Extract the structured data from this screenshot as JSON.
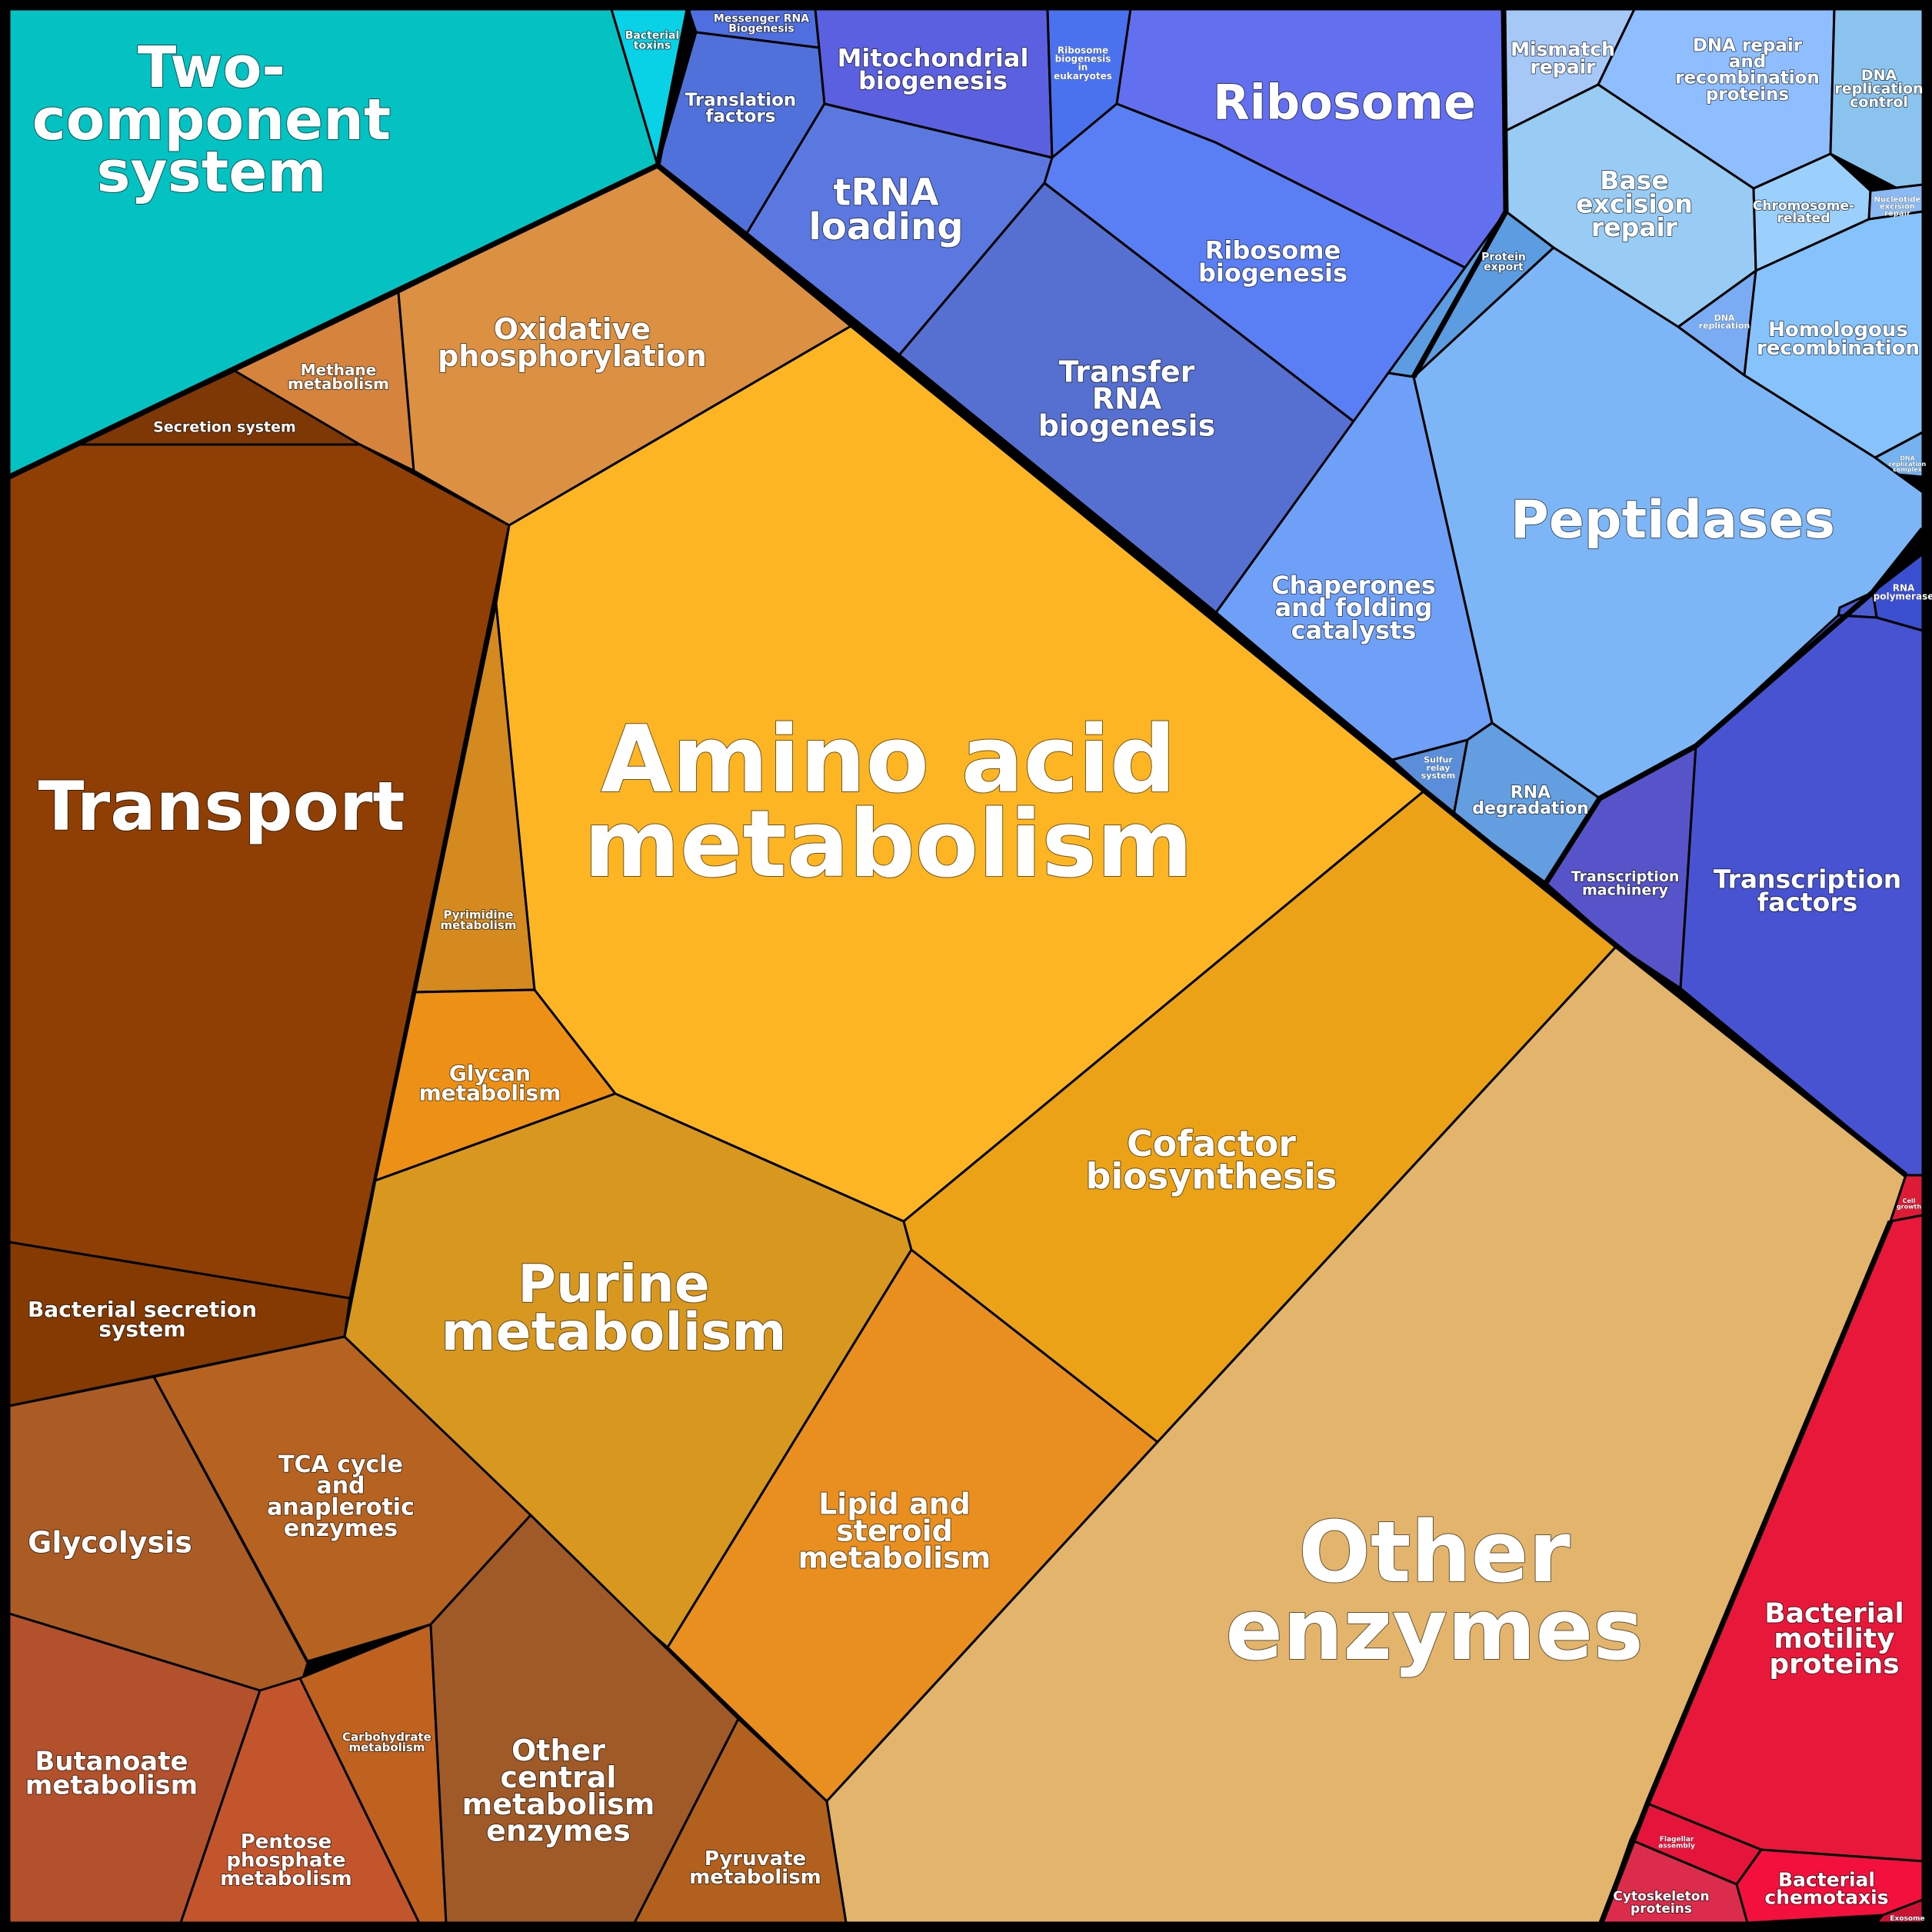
{
  "cells": [
    {
      "id": "two-component-system",
      "lines": [
        "Two-",
        "component",
        "system"
      ],
      "color": "#04c2c2"
    },
    {
      "id": "bacterial-toxins",
      "lines": [
        "Bacterial",
        "toxins"
      ],
      "color": "#0ad2e6"
    },
    {
      "id": "secretion-system",
      "lines": [
        "Secretion system"
      ],
      "color": "#7e3806"
    },
    {
      "id": "methane-metabolism",
      "lines": [
        "Methane",
        "metabolism"
      ],
      "color": "#d5833d"
    },
    {
      "id": "oxidative-phosphorylation",
      "lines": [
        "Oxidative",
        "phosphorylation"
      ],
      "color": "#db9042"
    },
    {
      "id": "transport",
      "lines": [
        "Transport"
      ],
      "color": "#8f3f04"
    },
    {
      "id": "bacterial-secretion-system",
      "lines": [
        "Bacterial secretion",
        "system"
      ],
      "color": "#853a02"
    },
    {
      "id": "amino-acid-metabolism",
      "lines": [
        "Amino acid",
        "metabolism"
      ],
      "color": "#fdb524"
    },
    {
      "id": "pyrimidine-metabolism",
      "lines": [
        "Pyrimidine",
        "metabolism"
      ],
      "color": "#d48a1e"
    },
    {
      "id": "glycan-metabolism",
      "lines": [
        "Glycan",
        "metabolism"
      ],
      "color": "#ed9116"
    },
    {
      "id": "purine-metabolism",
      "lines": [
        "Purine",
        "metabolism"
      ],
      "color": "#d89820"
    },
    {
      "id": "cofactor-biosynthesis",
      "lines": [
        "Cofactor",
        "biosynthesis"
      ],
      "color": "#eba217"
    },
    {
      "id": "lipid-steroid-metabolism",
      "lines": [
        "Lipid and",
        "steroid",
        "metabolism"
      ],
      "color": "#e88f20"
    },
    {
      "id": "other-enzymes",
      "lines": [
        "Other",
        "enzymes"
      ],
      "color": "#e2b46c"
    },
    {
      "id": "glycolysis",
      "lines": [
        "Glycolysis"
      ],
      "color": "#aa5c24"
    },
    {
      "id": "tca-cycle",
      "lines": [
        "TCA cycle",
        "and",
        "anaplerotic",
        "enzymes"
      ],
      "color": "#b66322"
    },
    {
      "id": "butanoate-metabolism",
      "lines": [
        "Butanoate",
        "metabolism"
      ],
      "color": "#b2512c"
    },
    {
      "id": "pentose-phosphate-metabolism",
      "lines": [
        "Pentose",
        "phosphate",
        "metabolism"
      ],
      "color": "#c3552c"
    },
    {
      "id": "carbohydrate-metabolism",
      "lines": [
        "Carbohydrate",
        "metabolism"
      ],
      "color": "#bf6220"
    },
    {
      "id": "other-central-metabolism",
      "lines": [
        "Other",
        "central",
        "metabolism",
        "enzymes"
      ],
      "color": "#a05a28"
    },
    {
      "id": "pyruvate-metabolism",
      "lines": [
        "Pyruvate",
        "metabolism"
      ],
      "color": "#b2601e"
    },
    {
      "id": "messenger-rna-biogenesis",
      "lines": [
        "Messenger RNA",
        "Biogenesis"
      ],
      "color": "#4f6ee0"
    },
    {
      "id": "translation-factors",
      "lines": [
        "Translation",
        "factors"
      ],
      "color": "#5071d9"
    },
    {
      "id": "mitochondrial-biogenesis",
      "lines": [
        "Mitochondrial",
        "biogenesis"
      ],
      "color": "#5a60e0"
    },
    {
      "id": "ribosome-biogenesis-eukaryotes",
      "lines": [
        "Ribosome",
        "biogenesis",
        "in",
        "eukaryotes"
      ],
      "color": "#4b72ee"
    },
    {
      "id": "ribosome",
      "lines": [
        "Ribosome"
      ],
      "color": "#6270ef"
    },
    {
      "id": "trna-loading",
      "lines": [
        "tRNA",
        "loading"
      ],
      "color": "#5a78e0"
    },
    {
      "id": "ribosome-biogenesis",
      "lines": [
        "Ribosome",
        "biogenesis"
      ],
      "color": "#5a7ef4"
    },
    {
      "id": "transfer-rna-biogenesis",
      "lines": [
        "Transfer",
        "RNA",
        "biogenesis"
      ],
      "color": "#5570d0"
    },
    {
      "id": "mismatch-repair",
      "lines": [
        "Mismatch",
        "repair"
      ],
      "color": "#a5c8f6"
    },
    {
      "id": "dna-repair-recombination",
      "lines": [
        "DNA repair",
        "and",
        "recombination",
        "proteins"
      ],
      "color": "#8ebeff"
    },
    {
      "id": "dna-replication-control",
      "lines": [
        "DNA",
        "replication",
        "control"
      ],
      "color": "#8ac4ee"
    },
    {
      "id": "base-excision-repair",
      "lines": [
        "Base",
        "excision",
        "repair"
      ],
      "color": "#98ccf4"
    },
    {
      "id": "chromosome-related",
      "lines": [
        "Chromosome-",
        "related"
      ],
      "color": "#9ad0fb"
    },
    {
      "id": "nucleotide-excision-repair",
      "lines": [
        "Nucleotide",
        "excision",
        "repair"
      ],
      "color": "#8ab9f4"
    },
    {
      "id": "protein-export",
      "lines": [
        "Protein",
        "export"
      ],
      "color": "#5c9ce0"
    },
    {
      "id": "dna-replication",
      "lines": [
        "DNA",
        "replication"
      ],
      "color": "#7aacf4"
    },
    {
      "id": "homologous-recombination",
      "lines": [
        "Homologous",
        "recombination"
      ],
      "color": "#86c2fb"
    },
    {
      "id": "dna-replication-complex",
      "lines": [
        "DNA",
        "replication",
        "complex"
      ],
      "color": "#74b2f0"
    },
    {
      "id": "peptidases",
      "lines": [
        "Peptidases"
      ],
      "color": "#7cb6f6"
    },
    {
      "id": "chaperones",
      "lines": [
        "Chaperones",
        "and folding",
        "catalysts"
      ],
      "color": "#6ea0f8"
    },
    {
      "id": "sulfur-relay-system",
      "lines": [
        "Sulfur",
        "relay",
        "system"
      ],
      "color": "#5b8ed8"
    },
    {
      "id": "rna-degradation",
      "lines": [
        "RNA",
        "degradation"
      ],
      "color": "#629ee0"
    },
    {
      "id": "rna-polymerase",
      "lines": [
        "RNA",
        "polymerase"
      ],
      "color": "#3a4ed0"
    },
    {
      "id": "transcription-small",
      "lines": [],
      "color": "#4a5cd0"
    },
    {
      "id": "transcription-machinery",
      "lines": [
        "Transcription",
        "machinery"
      ],
      "color": "#5654c8"
    },
    {
      "id": "transcription-factors",
      "lines": [
        "Transcription",
        "factors"
      ],
      "color": "#4753d0"
    },
    {
      "id": "cell-growth",
      "lines": [
        "Cell",
        "growth"
      ],
      "color": "#dc1c34"
    },
    {
      "id": "bacterial-motility-proteins",
      "lines": [
        "Bacterial",
        "motility",
        "proteins"
      ],
      "color": "#e8183a"
    },
    {
      "id": "flagellar-assembly",
      "lines": [
        "Flagellar",
        "assembly"
      ],
      "color": "#e4143a"
    },
    {
      "id": "cytoskeleton-proteins",
      "lines": [
        "Cytoskeleton",
        "proteins"
      ],
      "color": "#dc2c4c"
    },
    {
      "id": "bacterial-chemotaxis",
      "lines": [
        "Bacterial",
        "chemotaxis"
      ],
      "color": "#f4103c"
    },
    {
      "id": "exosome",
      "lines": [
        "Exosome"
      ],
      "color": "#c81434"
    }
  ]
}
